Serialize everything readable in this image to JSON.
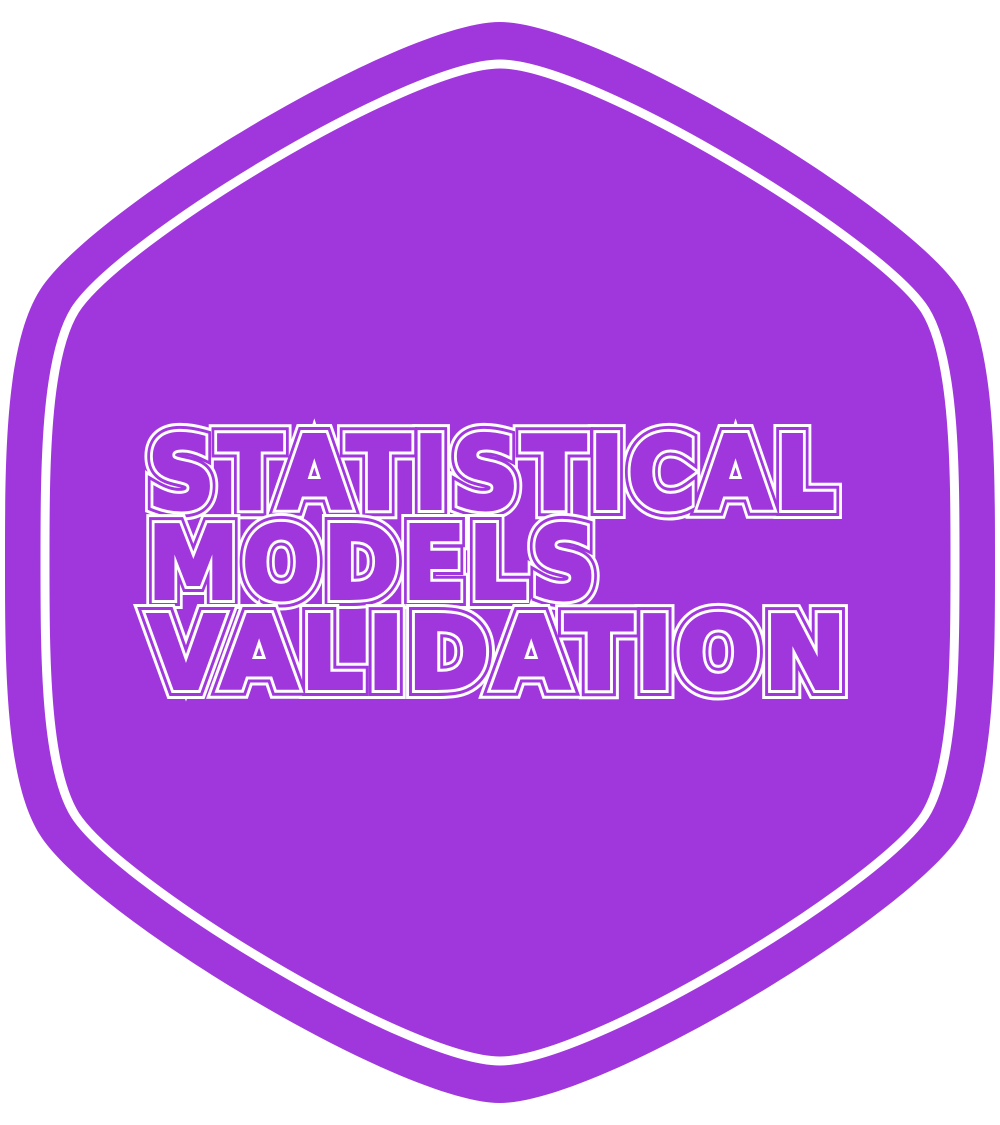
{
  "badge": {
    "title_lines": [
      "STATISTICAL",
      "MODELS",
      "VALIDATION"
    ]
  },
  "colors": {
    "badge_fill": "#A037DC",
    "inner_border": "#FFFFFF",
    "text_line": "#FFFFFF",
    "background": "#FFFFFF"
  }
}
